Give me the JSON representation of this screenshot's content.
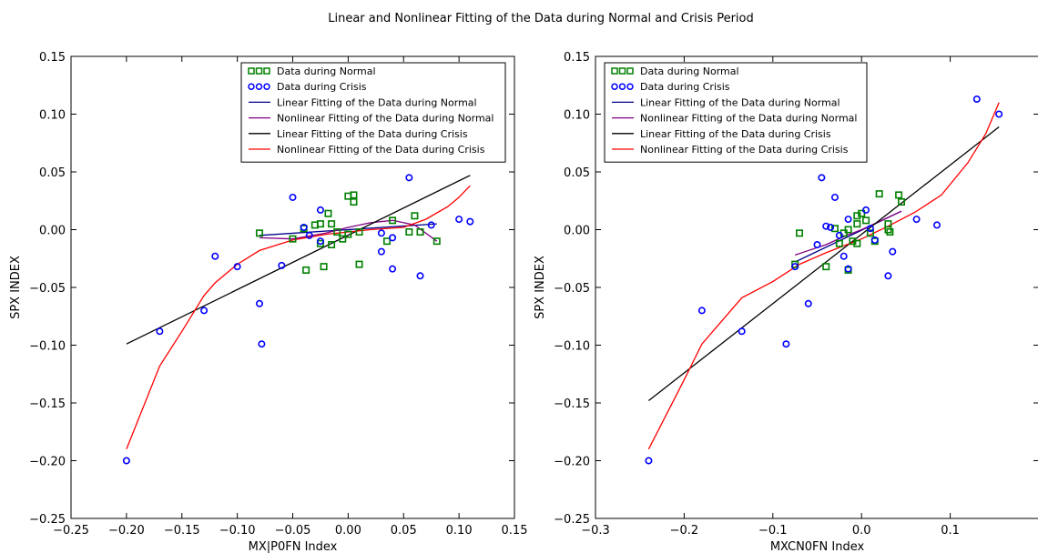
{
  "figure": {
    "title": "Linear and Nonlinear Fitting of the Data during Normal and Crisis Period"
  },
  "chart_data": [
    {
      "type": "scatter",
      "xlabel": "MX|P0FN Index",
      "ylabel": "SPX INDEX",
      "xlim": [
        -0.25,
        0.15
      ],
      "ylim": [
        -0.25,
        0.15
      ],
      "xticks": [
        -0.25,
        -0.2,
        -0.15,
        -0.1,
        -0.05,
        0.0,
        0.05,
        0.1,
        0.15
      ],
      "yticks": [
        -0.25,
        -0.2,
        -0.15,
        -0.1,
        -0.05,
        0.0,
        0.05,
        0.1,
        0.15
      ],
      "xtick_labels": [
        "−0.25",
        "−0.20",
        "−0.15",
        "−0.10",
        "−0.05",
        "0.00",
        "0.05",
        "0.10",
        "0.15"
      ],
      "ytick_labels": [
        "−0.25",
        "−0.20",
        "−0.15",
        "−0.10",
        "−0.05",
        "0.00",
        "0.05",
        "0.10",
        "0.15"
      ],
      "legend_position": "top-right",
      "series": [
        {
          "name": "Data during Normal",
          "kind": "square",
          "color": "#008000",
          "points": [
            [
              -0.08,
              -0.003
            ],
            [
              -0.05,
              -0.008
            ],
            [
              -0.04,
              0.001
            ],
            [
              -0.038,
              -0.035
            ],
            [
              -0.03,
              0.004
            ],
            [
              -0.025,
              0.005
            ],
            [
              -0.025,
              -0.012
            ],
            [
              -0.022,
              -0.032
            ],
            [
              -0.018,
              0.014
            ],
            [
              -0.015,
              0.005
            ],
            [
              -0.015,
              -0.013
            ],
            [
              -0.01,
              -0.002
            ],
            [
              -0.005,
              -0.008
            ],
            [
              0.0,
              0.029
            ],
            [
              0.0,
              -0.004
            ],
            [
              0.005,
              0.03
            ],
            [
              0.005,
              0.024
            ],
            [
              0.01,
              -0.002
            ],
            [
              0.01,
              -0.03
            ],
            [
              0.035,
              -0.01
            ],
            [
              0.04,
              0.008
            ],
            [
              0.055,
              -0.002
            ],
            [
              0.06,
              0.012
            ],
            [
              0.065,
              -0.002
            ],
            [
              0.08,
              -0.01
            ]
          ]
        },
        {
          "name": "Data during Crisis",
          "kind": "circle",
          "color": "#0000ff",
          "points": [
            [
              -0.2,
              -0.2
            ],
            [
              -0.17,
              -0.088
            ],
            [
              -0.13,
              -0.07
            ],
            [
              -0.12,
              -0.023
            ],
            [
              -0.1,
              -0.032
            ],
            [
              -0.08,
              -0.064
            ],
            [
              -0.078,
              -0.099
            ],
            [
              -0.06,
              -0.031
            ],
            [
              -0.05,
              0.028
            ],
            [
              -0.04,
              0.002
            ],
            [
              -0.035,
              -0.005
            ],
            [
              -0.025,
              0.017
            ],
            [
              -0.025,
              -0.01
            ],
            [
              0.03,
              -0.019
            ],
            [
              0.03,
              -0.003
            ],
            [
              0.04,
              -0.007
            ],
            [
              0.04,
              -0.034
            ],
            [
              0.055,
              0.045
            ],
            [
              0.065,
              -0.04
            ],
            [
              0.075,
              0.004
            ],
            [
              0.1,
              0.009
            ],
            [
              0.11,
              0.007
            ]
          ]
        },
        {
          "name": "Linear Fitting of the Data during Normal",
          "kind": "line",
          "color": "#00008b",
          "points": [
            [
              -0.08,
              -0.005
            ],
            [
              0.08,
              0.005
            ]
          ]
        },
        {
          "name": "Nonlinear Fitting of the Data during Normal",
          "kind": "line",
          "color": "#800080",
          "points": [
            [
              -0.08,
              -0.007
            ],
            [
              -0.05,
              -0.008
            ],
            [
              -0.02,
              -0.003
            ],
            [
              0.0,
              0.002
            ],
            [
              0.02,
              0.006
            ],
            [
              0.04,
              0.008
            ],
            [
              0.06,
              0.004
            ],
            [
              0.08,
              -0.01
            ]
          ]
        },
        {
          "name": "Linear Fitting of the Data during Crisis",
          "kind": "line",
          "color": "#000000",
          "points": [
            [
              -0.2,
              -0.099
            ],
            [
              0.11,
              0.047
            ]
          ]
        },
        {
          "name": "Nonlinear Fitting of the Data during Crisis",
          "kind": "line",
          "color": "#ff0000",
          "points": [
            [
              -0.2,
              -0.19
            ],
            [
              -0.17,
              -0.118
            ],
            [
              -0.15,
              -0.088
            ],
            [
              -0.13,
              -0.057
            ],
            [
              -0.12,
              -0.046
            ],
            [
              -0.1,
              -0.03
            ],
            [
              -0.08,
              -0.018
            ],
            [
              -0.05,
              -0.009
            ],
            [
              -0.02,
              -0.004
            ],
            [
              0.0,
              -0.002
            ],
            [
              0.02,
              0.0
            ],
            [
              0.05,
              0.002
            ],
            [
              0.07,
              0.009
            ],
            [
              0.09,
              0.02
            ],
            [
              0.1,
              0.028
            ],
            [
              0.11,
              0.038
            ]
          ]
        }
      ]
    },
    {
      "type": "scatter",
      "xlabel": "MXCN0FN Index",
      "ylabel": "SPX INDEX",
      "xlim": [
        -0.3,
        0.2
      ],
      "ylim": [
        -0.25,
        0.15
      ],
      "xticks": [
        -0.3,
        -0.2,
        -0.1,
        0.0,
        0.1
      ],
      "yticks": [
        -0.25,
        -0.2,
        -0.15,
        -0.1,
        -0.05,
        0.0,
        0.05,
        0.1,
        0.15
      ],
      "xtick_labels": [
        "−0.3",
        "−0.2",
        "−0.1",
        "0.0",
        "0.1"
      ],
      "ytick_labels": [
        "−0.25",
        "−0.20",
        "−0.15",
        "−0.10",
        "−0.05",
        "0.00",
        "0.05",
        "0.10",
        "0.15"
      ],
      "legend_position": "top-left",
      "series": [
        {
          "name": "Data during Normal",
          "kind": "square",
          "color": "#008000",
          "points": [
            [
              -0.07,
              -0.003
            ],
            [
              -0.075,
              -0.03
            ],
            [
              -0.04,
              -0.032
            ],
            [
              -0.03,
              0.001
            ],
            [
              -0.025,
              -0.012
            ],
            [
              -0.02,
              -0.003
            ],
            [
              -0.015,
              0.0
            ],
            [
              -0.015,
              -0.035
            ],
            [
              -0.01,
              -0.01
            ],
            [
              -0.005,
              0.012
            ],
            [
              -0.005,
              0.005
            ],
            [
              -0.005,
              -0.012
            ],
            [
              0.0,
              0.014
            ],
            [
              0.005,
              0.008
            ],
            [
              0.01,
              -0.003
            ],
            [
              0.015,
              -0.01
            ],
            [
              0.02,
              0.031
            ],
            [
              0.03,
              0.0
            ],
            [
              0.03,
              0.005
            ],
            [
              0.032,
              -0.002
            ],
            [
              0.042,
              0.03
            ],
            [
              0.045,
              0.024
            ]
          ]
        },
        {
          "name": "Data during Crisis",
          "kind": "circle",
          "color": "#0000ff",
          "points": [
            [
              -0.24,
              -0.2
            ],
            [
              -0.18,
              -0.07
            ],
            [
              -0.135,
              -0.088
            ],
            [
              -0.085,
              -0.099
            ],
            [
              -0.075,
              -0.032
            ],
            [
              -0.06,
              -0.064
            ],
            [
              -0.05,
              -0.013
            ],
            [
              -0.045,
              0.045
            ],
            [
              -0.04,
              0.003
            ],
            [
              -0.035,
              0.002
            ],
            [
              -0.03,
              0.028
            ],
            [
              -0.025,
              -0.005
            ],
            [
              -0.02,
              -0.023
            ],
            [
              -0.015,
              -0.034
            ],
            [
              -0.015,
              0.009
            ],
            [
              0.005,
              0.017
            ],
            [
              0.01,
              0.001
            ],
            [
              0.015,
              -0.009
            ],
            [
              0.03,
              -0.04
            ],
            [
              0.035,
              -0.019
            ],
            [
              0.062,
              0.009
            ],
            [
              0.085,
              0.004
            ],
            [
              0.13,
              0.113
            ],
            [
              0.155,
              0.1
            ]
          ]
        },
        {
          "name": "Linear Fitting of the Data during Normal",
          "kind": "line",
          "color": "#00008b",
          "points": [
            [
              -0.075,
              -0.028
            ],
            [
              0.045,
              0.016
            ]
          ]
        },
        {
          "name": "Nonlinear Fitting of the Data during Normal",
          "kind": "line",
          "color": "#800080",
          "points": [
            [
              -0.075,
              -0.022
            ],
            [
              -0.04,
              -0.013
            ],
            [
              -0.02,
              -0.006
            ],
            [
              0.0,
              0.0
            ],
            [
              0.02,
              0.007
            ],
            [
              0.045,
              0.016
            ]
          ]
        },
        {
          "name": "Linear Fitting of the Data during Crisis",
          "kind": "line",
          "color": "#000000",
          "points": [
            [
              -0.24,
              -0.148
            ],
            [
              0.155,
              0.089
            ]
          ]
        },
        {
          "name": "Nonlinear Fitting of the Data during Crisis",
          "kind": "line",
          "color": "#ff0000",
          "points": [
            [
              -0.24,
              -0.19
            ],
            [
              -0.2,
              -0.13
            ],
            [
              -0.18,
              -0.099
            ],
            [
              -0.135,
              -0.059
            ],
            [
              -0.1,
              -0.045
            ],
            [
              -0.07,
              -0.03
            ],
            [
              -0.04,
              -0.02
            ],
            [
              0.0,
              -0.008
            ],
            [
              0.03,
              0.003
            ],
            [
              0.06,
              0.015
            ],
            [
              0.09,
              0.03
            ],
            [
              0.12,
              0.058
            ],
            [
              0.14,
              0.083
            ],
            [
              0.155,
              0.11
            ]
          ]
        }
      ]
    }
  ]
}
